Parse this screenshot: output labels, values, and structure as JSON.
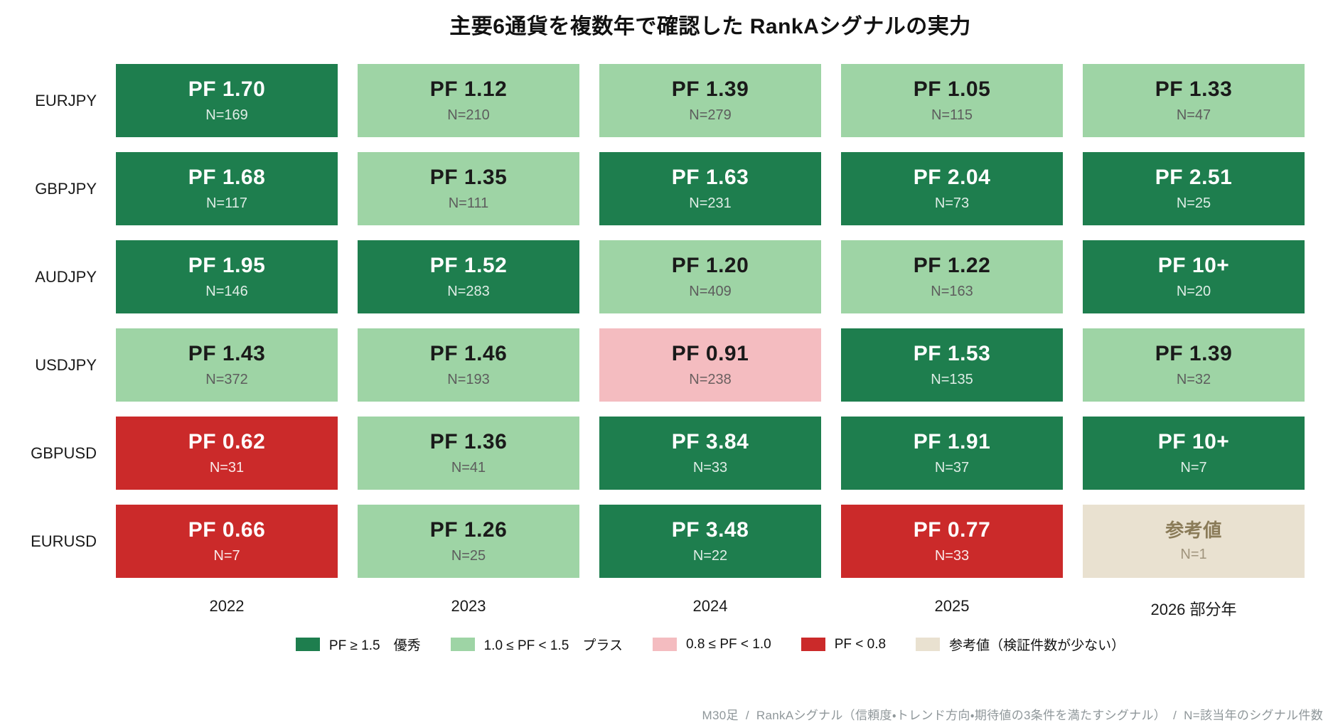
{
  "title": "主要6通貨を複数年で確認した RankAシグナルの実力",
  "columns": [
    "2022",
    "2023",
    "2024",
    "2025",
    "2026 部分年"
  ],
  "rows": [
    "EURJPY",
    "GBPJPY",
    "AUDJPY",
    "USDJPY",
    "GBPUSD",
    "EURUSD"
  ],
  "cells": [
    [
      {
        "pf": "PF 1.70",
        "n": "N=169",
        "cat": "excellent"
      },
      {
        "pf": "PF 1.12",
        "n": "N=210",
        "cat": "plus"
      },
      {
        "pf": "PF 1.39",
        "n": "N=279",
        "cat": "plus"
      },
      {
        "pf": "PF 1.05",
        "n": "N=115",
        "cat": "plus"
      },
      {
        "pf": "PF 1.33",
        "n": "N=47",
        "cat": "plus"
      }
    ],
    [
      {
        "pf": "PF 1.68",
        "n": "N=117",
        "cat": "excellent"
      },
      {
        "pf": "PF 1.35",
        "n": "N=111",
        "cat": "plus"
      },
      {
        "pf": "PF 1.63",
        "n": "N=231",
        "cat": "excellent"
      },
      {
        "pf": "PF 2.04",
        "n": "N=73",
        "cat": "excellent"
      },
      {
        "pf": "PF 2.51",
        "n": "N=25",
        "cat": "excellent"
      }
    ],
    [
      {
        "pf": "PF 1.95",
        "n": "N=146",
        "cat": "excellent"
      },
      {
        "pf": "PF 1.52",
        "n": "N=283",
        "cat": "excellent"
      },
      {
        "pf": "PF 1.20",
        "n": "N=409",
        "cat": "plus"
      },
      {
        "pf": "PF 1.22",
        "n": "N=163",
        "cat": "plus"
      },
      {
        "pf": "PF 10+",
        "n": "N=20",
        "cat": "excellent"
      }
    ],
    [
      {
        "pf": "PF 1.43",
        "n": "N=372",
        "cat": "plus"
      },
      {
        "pf": "PF 1.46",
        "n": "N=193",
        "cat": "plus"
      },
      {
        "pf": "PF 0.91",
        "n": "N=238",
        "cat": "warn"
      },
      {
        "pf": "PF 1.53",
        "n": "N=135",
        "cat": "excellent"
      },
      {
        "pf": "PF 1.39",
        "n": "N=32",
        "cat": "plus"
      }
    ],
    [
      {
        "pf": "PF 0.62",
        "n": "N=31",
        "cat": "bad"
      },
      {
        "pf": "PF 1.36",
        "n": "N=41",
        "cat": "plus"
      },
      {
        "pf": "PF 3.84",
        "n": "N=33",
        "cat": "excellent"
      },
      {
        "pf": "PF 1.91",
        "n": "N=37",
        "cat": "excellent"
      },
      {
        "pf": "PF 10+",
        "n": "N=7",
        "cat": "excellent"
      }
    ],
    [
      {
        "pf": "PF 0.66",
        "n": "N=7",
        "cat": "bad"
      },
      {
        "pf": "PF 1.26",
        "n": "N=25",
        "cat": "plus"
      },
      {
        "pf": "PF 3.48",
        "n": "N=22",
        "cat": "excellent"
      },
      {
        "pf": "PF 0.77",
        "n": "N=33",
        "cat": "bad"
      },
      {
        "pf": "参考値",
        "n": "N=1",
        "cat": "ref"
      }
    ]
  ],
  "colors": {
    "excellent": "#1e7e4e",
    "plus": "#9ed4a5",
    "warn": "#f4bcc0",
    "bad": "#cb2a2a",
    "ref": "#e9e1d0"
  },
  "legend": [
    {
      "label": "PF ≥ 1.5　優秀",
      "cat": "excellent"
    },
    {
      "label": "1.0 ≤ PF < 1.5　プラス",
      "cat": "plus"
    },
    {
      "label": "0.8 ≤ PF < 1.0",
      "cat": "warn"
    },
    {
      "label": "PF < 0.8",
      "cat": "bad"
    },
    {
      "label": "参考値（検証件数が少ない）",
      "cat": "ref"
    }
  ],
  "footer": "M30足  /  RankAシグナル（信頼度・トレンド方向・期待値の3条件を満たすシグナル）  /  N=該当年のシグナル件数",
  "chart_data": {
    "type": "heatmap",
    "title": "主要6通貨を複数年で確認した RankAシグナルの実力",
    "x_categories": [
      "2022",
      "2023",
      "2024",
      "2025",
      "2026 部分年"
    ],
    "y_categories": [
      "EURJPY",
      "GBPJPY",
      "AUDJPY",
      "USDJPY",
      "GBPUSD",
      "EURUSD"
    ],
    "series": [
      {
        "name": "EURJPY",
        "pf": [
          1.7,
          1.12,
          1.39,
          1.05,
          1.33
        ],
        "n": [
          169,
          210,
          279,
          115,
          47
        ]
      },
      {
        "name": "GBPJPY",
        "pf": [
          1.68,
          1.35,
          1.63,
          2.04,
          2.51
        ],
        "n": [
          117,
          111,
          231,
          73,
          25
        ]
      },
      {
        "name": "AUDJPY",
        "pf": [
          1.95,
          1.52,
          1.2,
          1.22,
          "10+"
        ],
        "n": [
          146,
          283,
          409,
          163,
          20
        ]
      },
      {
        "name": "USDJPY",
        "pf": [
          1.43,
          1.46,
          0.91,
          1.53,
          1.39
        ],
        "n": [
          372,
          193,
          238,
          135,
          32
        ]
      },
      {
        "name": "GBPUSD",
        "pf": [
          0.62,
          1.36,
          3.84,
          1.91,
          "10+"
        ],
        "n": [
          31,
          41,
          33,
          37,
          7
        ]
      },
      {
        "name": "EURUSD",
        "pf": [
          0.66,
          1.26,
          3.48,
          0.77,
          "参考値"
        ],
        "n": [
          7,
          25,
          22,
          33,
          1
        ]
      }
    ],
    "value_categories": {
      "excellent": "PF ≥ 1.5",
      "plus": "1.0 ≤ PF < 1.5",
      "warn": "0.8 ≤ PF < 1.0",
      "bad": "PF < 0.8",
      "ref": "参考値（検証件数が少ない）"
    },
    "legend_position": "bottom-center",
    "grid": false
  }
}
